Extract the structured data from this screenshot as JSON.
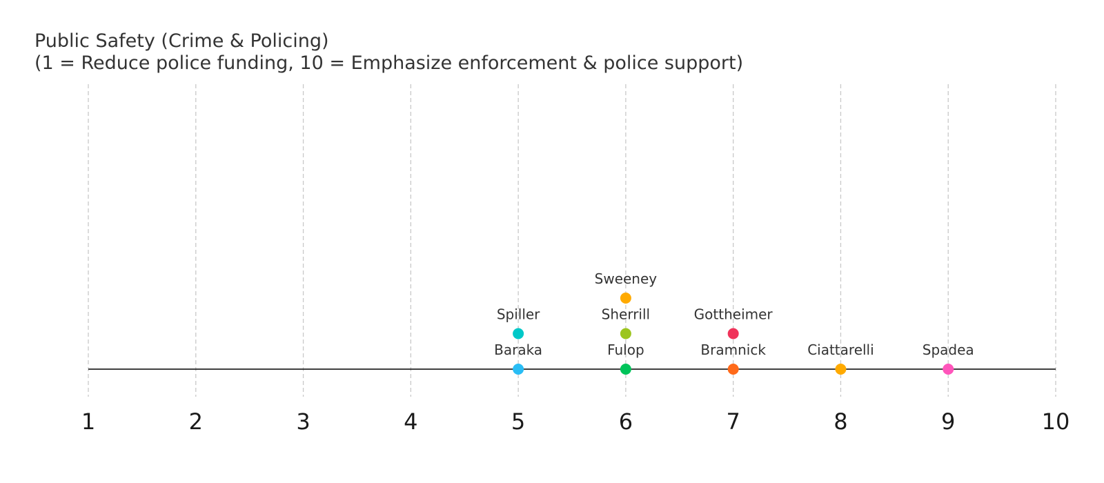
{
  "chart_data": {
    "type": "scatter",
    "title": "Public Safety (Crime & Policing)",
    "subtitle": "(1 = Reduce police funding, 10 = Emphasize enforcement & police support)",
    "xlim": [
      1,
      10
    ],
    "x_ticks": [
      "1",
      "2",
      "3",
      "4",
      "5",
      "6",
      "7",
      "8",
      "9",
      "10"
    ],
    "grid": "vertical dashed",
    "points": [
      {
        "name": "Baraka",
        "x": 5,
        "level": 0,
        "color": "#29BDF5"
      },
      {
        "name": "Spiller",
        "x": 5,
        "level": 1,
        "color": "#00C8C8"
      },
      {
        "name": "Fulop",
        "x": 6,
        "level": 0,
        "color": "#00C45A"
      },
      {
        "name": "Sherrill",
        "x": 6,
        "level": 1,
        "color": "#9CC51E"
      },
      {
        "name": "Sweeney",
        "x": 6,
        "level": 2,
        "color": "#FFAA00"
      },
      {
        "name": "Bramnick",
        "x": 7,
        "level": 0,
        "color": "#FF6A1A"
      },
      {
        "name": "Gottheimer",
        "x": 7,
        "level": 1,
        "color": "#F0335A"
      },
      {
        "name": "Ciattarelli",
        "x": 8,
        "level": 0,
        "color": "#FFAA00"
      },
      {
        "name": "Spadea",
        "x": 9,
        "level": 0,
        "color": "#FF55BB"
      }
    ]
  }
}
